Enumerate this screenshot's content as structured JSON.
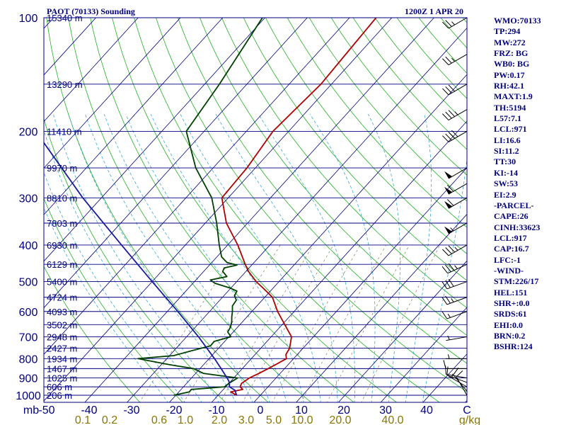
{
  "header": {
    "left_title": "PAOT (70133) Sounding",
    "right_title": "1200Z  1 APR 20"
  },
  "chart_data": {
    "type": "line",
    "title": "PAOT (70133) Sounding",
    "subtitle": "1200Z  1 APR 20",
    "x_axis": {
      "label": "",
      "unit_label": "mb",
      "ticks": [
        "-50",
        "-40",
        "-30",
        "-20",
        "-10",
        "0",
        "10",
        "20",
        "30",
        "40",
        "C"
      ]
    },
    "y_axis": {
      "scale": "log",
      "ticks": [
        "100",
        "200",
        "300",
        "400",
        "500",
        "600",
        "700",
        "800",
        "900",
        "1000"
      ]
    },
    "height_labels": [
      {
        "p": 100,
        "text": "15340 m"
      },
      {
        "p": 150,
        "text": "13290 m"
      },
      {
        "p": 200,
        "text": "11410 m"
      },
      {
        "p": 250,
        "text": "9970 m"
      },
      {
        "p": 300,
        "text": "8810 m"
      },
      {
        "p": 350,
        "text": "7803 m"
      },
      {
        "p": 400,
        "text": "6930 m"
      },
      {
        "p": 450,
        "text": "6129 m"
      },
      {
        "p": 500,
        "text": "5400 m"
      },
      {
        "p": 550,
        "text": "4724 m"
      },
      {
        "p": 600,
        "text": "4093 m"
      },
      {
        "p": 650,
        "text": "3502 m"
      },
      {
        "p": 700,
        "text": "2948 m"
      },
      {
        "p": 750,
        "text": "2427 m"
      },
      {
        "p": 800,
        "text": "1934 m"
      },
      {
        "p": 850,
        "text": "1467 m"
      },
      {
        "p": 900,
        "text": "1025 m"
      },
      {
        "p": 950,
        "text": "606 m"
      },
      {
        "p": 1000,
        "text": "206 m"
      }
    ],
    "mixing_ratio_labels": [
      "0.1",
      "0.2",
      "0.6",
      "1.0",
      "2.0",
      "3.0",
      "5.0",
      "10.0",
      "20.0",
      "40.0",
      "g/kg"
    ],
    "series": [
      {
        "role": "temperature",
        "color": "#b00000",
        "points": [
          [
            1000,
            -5.6
          ],
          [
            980,
            -7.7
          ],
          [
            965,
            -5.4
          ],
          [
            950,
            -6.6
          ],
          [
            930,
            -7.0
          ],
          [
            900,
            -6.3
          ],
          [
            875,
            -5.0
          ],
          [
            850,
            -3.9
          ],
          [
            830,
            -3.0
          ],
          [
            800,
            -1.7
          ],
          [
            780,
            -2.7
          ],
          [
            750,
            -3.2
          ],
          [
            700,
            -5.2
          ],
          [
            650,
            -9.4
          ],
          [
            600,
            -13.9
          ],
          [
            550,
            -18.2
          ],
          [
            520,
            -22.4
          ],
          [
            500,
            -25.4
          ],
          [
            470,
            -29.4
          ],
          [
            450,
            -31.7
          ],
          [
            400,
            -37.6
          ],
          [
            350,
            -45.0
          ],
          [
            300,
            -51.5
          ],
          [
            250,
            -52.0
          ],
          [
            200,
            -53.7
          ],
          [
            150,
            -52.5
          ],
          [
            100,
            -53.7
          ]
        ]
      },
      {
        "role": "dewpoint",
        "color": "#004000",
        "points": [
          [
            1000,
            -20.5
          ],
          [
            980,
            -17.5
          ],
          [
            965,
            -17.6
          ],
          [
            950,
            -10.3
          ],
          [
            930,
            -10.0
          ],
          [
            900,
            -9.1
          ],
          [
            875,
            -18.2
          ],
          [
            850,
            -21.5
          ],
          [
            830,
            -28.0
          ],
          [
            800,
            -36.8
          ],
          [
            785,
            -29.0
          ],
          [
            760,
            -25.5
          ],
          [
            740,
            -22.4
          ],
          [
            720,
            -22.5
          ],
          [
            700,
            -19.5
          ],
          [
            680,
            -21.3
          ],
          [
            660,
            -21.7
          ],
          [
            640,
            -22.5
          ],
          [
            620,
            -23.6
          ],
          [
            600,
            -24.6
          ],
          [
            580,
            -25.8
          ],
          [
            560,
            -26.1
          ],
          [
            545,
            -27.5
          ],
          [
            530,
            -27.9
          ],
          [
            520,
            -30.2
          ],
          [
            505,
            -34.8
          ],
          [
            495,
            -36.6
          ],
          [
            485,
            -33.4
          ],
          [
            470,
            -35.5
          ],
          [
            460,
            -35.9
          ],
          [
            452,
            -33.5
          ],
          [
            445,
            -36.4
          ],
          [
            430,
            -38.9
          ],
          [
            400,
            -42.0
          ],
          [
            350,
            -47.3
          ],
          [
            300,
            -53.9
          ],
          [
            250,
            -64.1
          ],
          [
            200,
            -74.2
          ],
          [
            150,
            -76.5
          ],
          [
            100,
            -80.6
          ]
        ]
      },
      {
        "role": "parcel",
        "color": "#1a1aa0",
        "points": [
          [
            1000,
            -5.6
          ],
          [
            970,
            -7.1
          ],
          [
            950,
            -9.1
          ],
          [
            917,
            -10.5
          ],
          [
            900,
            -11.6
          ],
          [
            850,
            -15.0
          ],
          [
            800,
            -18.7
          ],
          [
            700,
            -27.2
          ],
          [
            600,
            -37.5
          ],
          [
            500,
            -50.0
          ],
          [
            400,
            -65.1
          ],
          [
            300,
            -84.4
          ],
          [
            200,
            -109.8
          ],
          [
            150,
            -124.6
          ],
          [
            100,
            -145.2
          ]
        ]
      }
    ],
    "indices": [
      "WMO:70133",
      "TP:294",
      "MW:272",
      "FRZ: BG",
      "WB0: BG",
      "PW:0.17",
      "RH:42.1",
      "MAXT:1.9",
      "TH:5194",
      "L57:7.1",
      "LCL:971",
      "LI:16.6",
      "SI:11.2",
      "TT:30",
      "KI:-14",
      "SW:53",
      "EI:2.9",
      "-PARCEL-",
      "CAPE:26",
      "CINH:33623",
      "LCL:917",
      "CAP:16.7",
      "LFC:-1",
      "-WIND-",
      "STM:226/17",
      "HEL:151",
      "SHR+:0.0",
      "SRDS:61",
      "EHI:0.0",
      "BRN:0.2",
      "BSHR:124"
    ],
    "winds": [
      {
        "p": 1000,
        "dir": 330,
        "spd": 10
      },
      {
        "p": 975,
        "dir": 320,
        "spd": 10
      },
      {
        "p": 950,
        "dir": 300,
        "spd": 5
      },
      {
        "p": 925,
        "dir": 290,
        "spd": 10
      },
      {
        "p": 900,
        "dir": 280,
        "spd": 10
      },
      {
        "p": 850,
        "dir": 270,
        "spd": 10
      },
      {
        "p": 800,
        "dir": 270,
        "spd": 5
      },
      {
        "p": 700,
        "dir": 260,
        "spd": 5
      },
      {
        "p": 600,
        "dir": 250,
        "spd": 15
      },
      {
        "p": 550,
        "dir": 250,
        "spd": 25
      },
      {
        "p": 500,
        "dir": 250,
        "spd": 30
      },
      {
        "p": 450,
        "dir": 245,
        "spd": 35
      },
      {
        "p": 400,
        "dir": 240,
        "spd": 35
      },
      {
        "p": 350,
        "dir": 240,
        "spd": 55
      },
      {
        "p": 300,
        "dir": 240,
        "spd": 60
      },
      {
        "p": 275,
        "dir": 240,
        "spd": 60
      },
      {
        "p": 250,
        "dir": 240,
        "spd": 50
      },
      {
        "p": 200,
        "dir": 240,
        "spd": 40
      },
      {
        "p": 175,
        "dir": 240,
        "spd": 35
      },
      {
        "p": 150,
        "dir": 240,
        "spd": 30
      },
      {
        "p": 125,
        "dir": 240,
        "spd": 25
      },
      {
        "p": 100,
        "dir": 240,
        "spd": 25
      }
    ],
    "grid": true
  }
}
